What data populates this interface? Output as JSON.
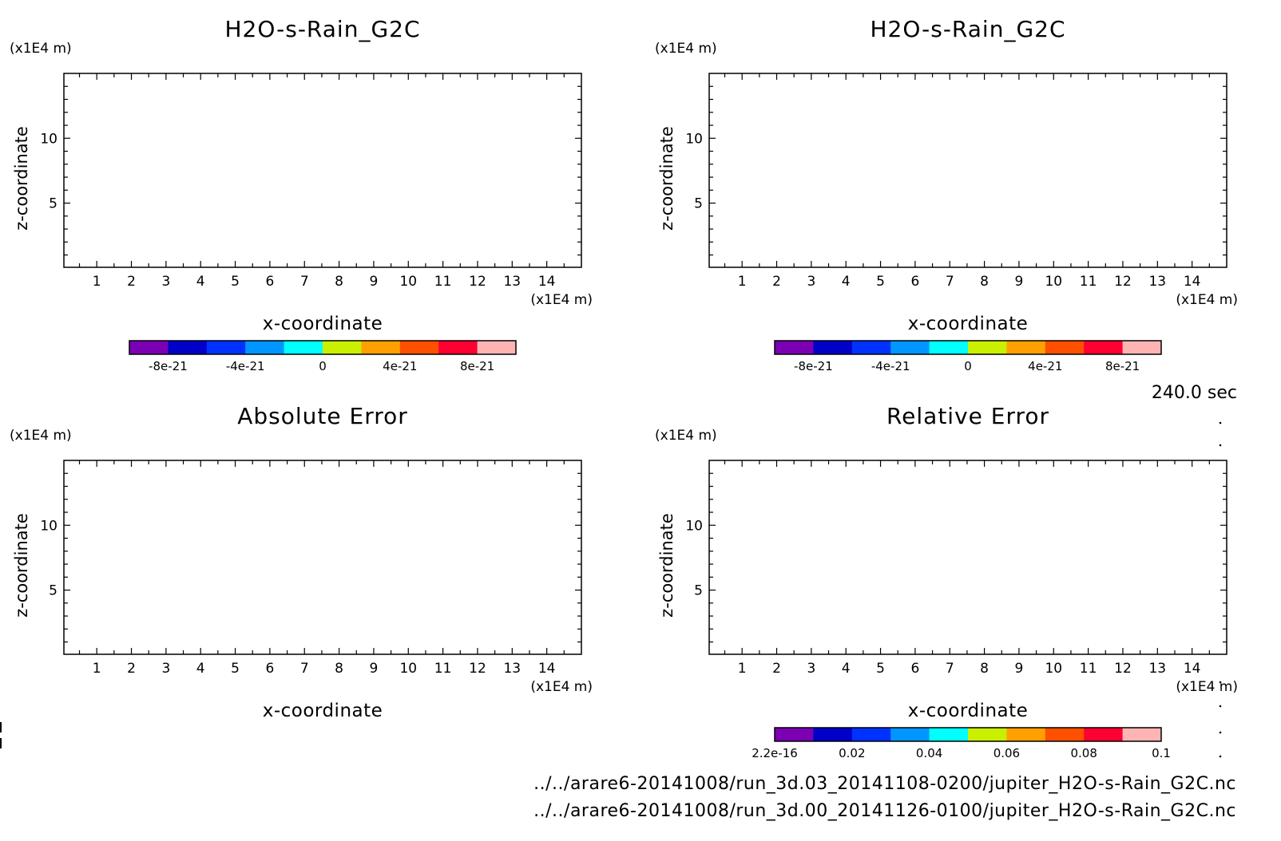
{
  "figure": {
    "time_label": "240.0 sec",
    "footer_lines": [
      "../../arare6-20141008/run_3d.03_20141108-0200/jupiter_H2O-s-Rain_G2C.nc",
      "../../arare6-20141008/run_3d.00_20141126-0100/jupiter_H2O-s-Rain_G2C.nc"
    ]
  },
  "chart_data": [
    {
      "type": "heatmap",
      "title": "H2O-s-Rain_G2C",
      "xlabel": "x-coordinate",
      "ylabel": "z-coordinate",
      "x_unit": "(x1E4 m)",
      "y_unit": "(x1E4 m)",
      "xlim": [
        0.05,
        15
      ],
      "ylim": [
        0.05,
        15
      ],
      "xticks": [
        1,
        2,
        3,
        4,
        5,
        6,
        7,
        8,
        9,
        10,
        11,
        12,
        13,
        14
      ],
      "yticks": [
        5,
        10
      ],
      "data": "empty",
      "colorbar": {
        "colors": [
          "#7b00b4",
          "#0000c8",
          "#0032ff",
          "#0096ff",
          "#00ffff",
          "#c8f000",
          "#ffa000",
          "#ff5000",
          "#ff0032",
          "#ffb4b4"
        ],
        "tick_labels": [
          "-8e-21",
          "-4e-21",
          "0",
          "4e-21",
          "8e-21"
        ],
        "tick_positions": [
          1,
          3,
          5,
          7,
          9
        ]
      }
    },
    {
      "type": "heatmap",
      "title": "H2O-s-Rain_G2C",
      "xlabel": "x-coordinate",
      "ylabel": "z-coordinate",
      "x_unit": "(x1E4 m)",
      "y_unit": "(x1E4 m)",
      "xlim": [
        0.05,
        15
      ],
      "ylim": [
        0.05,
        15
      ],
      "xticks": [
        1,
        2,
        3,
        4,
        5,
        6,
        7,
        8,
        9,
        10,
        11,
        12,
        13,
        14
      ],
      "yticks": [
        5,
        10
      ],
      "data": "empty",
      "colorbar": {
        "colors": [
          "#7b00b4",
          "#0000c8",
          "#0032ff",
          "#0096ff",
          "#00ffff",
          "#c8f000",
          "#ffa000",
          "#ff5000",
          "#ff0032",
          "#ffb4b4"
        ],
        "tick_labels": [
          "-8e-21",
          "-4e-21",
          "0",
          "4e-21",
          "8e-21"
        ],
        "tick_positions": [
          1,
          3,
          5,
          7,
          9
        ]
      }
    },
    {
      "type": "heatmap",
      "title": "Absolute Error",
      "xlabel": "x-coordinate",
      "ylabel": "z-coordinate",
      "x_unit": "(x1E4 m)",
      "y_unit": "(x1E4 m)",
      "xlim": [
        0.05,
        15
      ],
      "ylim": [
        0.05,
        15
      ],
      "xticks": [
        1,
        2,
        3,
        4,
        5,
        6,
        7,
        8,
        9,
        10,
        11,
        12,
        13,
        14
      ],
      "yticks": [
        5,
        10
      ],
      "data": "empty"
    },
    {
      "type": "heatmap",
      "title": "Relative Error",
      "xlabel": "x-coordinate",
      "ylabel": "z-coordinate",
      "x_unit": "(x1E4 m)",
      "y_unit": "(x1E4 m)",
      "xlim": [
        0.05,
        15
      ],
      "ylim": [
        0.05,
        15
      ],
      "xticks": [
        1,
        2,
        3,
        4,
        5,
        6,
        7,
        8,
        9,
        10,
        11,
        12,
        13,
        14
      ],
      "yticks": [
        5,
        10
      ],
      "data": "empty",
      "colorbar": {
        "colors": [
          "#7b00b4",
          "#0000c8",
          "#0032ff",
          "#0096ff",
          "#00ffff",
          "#c8f000",
          "#ffa000",
          "#ff5000",
          "#ff0032",
          "#ffb4b4"
        ],
        "tick_labels": [
          "2.2e-16",
          "0.02",
          "0.04",
          "0.06",
          "0.08",
          "0.1"
        ],
        "tick_positions": [
          0,
          2,
          4,
          6,
          8,
          10
        ]
      }
    }
  ]
}
